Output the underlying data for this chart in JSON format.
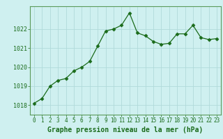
{
  "x": [
    0,
    1,
    2,
    3,
    4,
    5,
    6,
    7,
    8,
    9,
    10,
    11,
    12,
    13,
    14,
    15,
    16,
    17,
    18,
    19,
    20,
    21,
    22,
    23
  ],
  "y": [
    1018.1,
    1018.35,
    1019.0,
    1019.3,
    1019.4,
    1019.8,
    1020.0,
    1020.3,
    1021.1,
    1021.9,
    1022.0,
    1022.2,
    1022.85,
    1021.8,
    1021.65,
    1021.35,
    1021.2,
    1021.25,
    1021.75,
    1021.75,
    1022.2,
    1021.55,
    1021.45,
    1021.5
  ],
  "line_color": "#1a6b1a",
  "marker": "D",
  "marker_size": 2.5,
  "bg_color": "#cff0f0",
  "grid_color": "#b0dada",
  "spine_color": "#5a9a5a",
  "tick_color": "#1a6b1a",
  "xlabel": "Graphe pression niveau de la mer (hPa)",
  "xlabel_color": "#1a6b1a",
  "ylim": [
    1017.5,
    1023.2
  ],
  "yticks": [
    1018,
    1019,
    1020,
    1021,
    1022
  ],
  "xticks": [
    0,
    1,
    2,
    3,
    4,
    5,
    6,
    7,
    8,
    9,
    10,
    11,
    12,
    13,
    14,
    15,
    16,
    17,
    18,
    19,
    20,
    21,
    22,
    23
  ],
  "tick_fontsize": 5.5,
  "xlabel_fontsize": 7.0
}
